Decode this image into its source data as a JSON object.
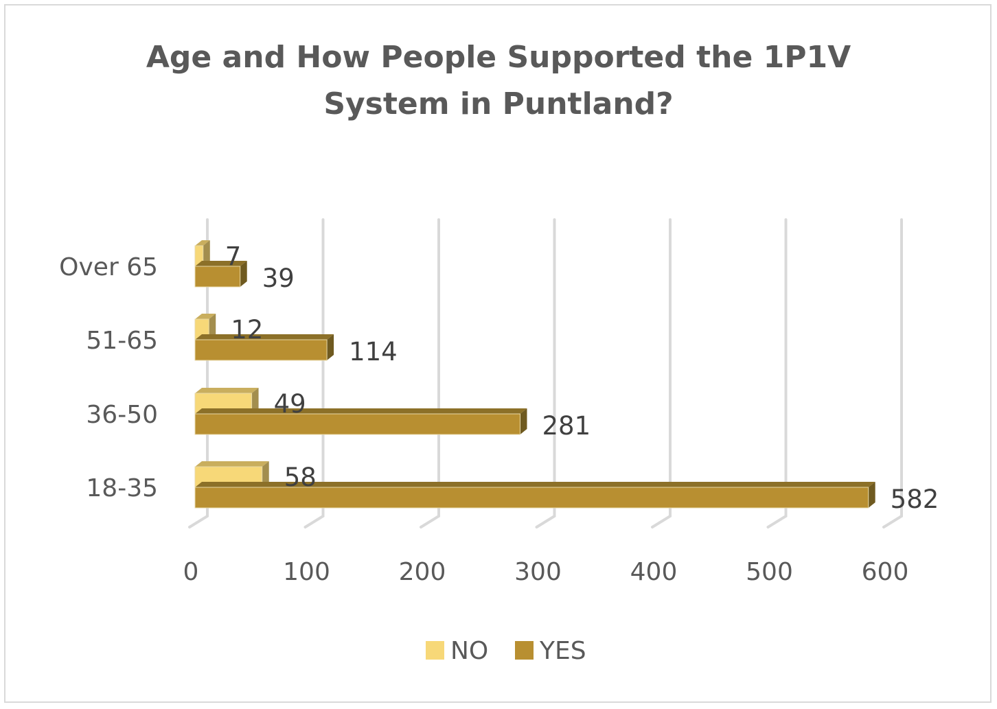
{
  "chart_data": {
    "type": "bar",
    "orientation": "horizontal",
    "style": "3d-clustered",
    "title": "Age and How People Supported the 1P1V System in Puntland?",
    "title_lines": [
      "Age and How People Supported the 1P1V",
      "System in Puntland?"
    ],
    "categories": [
      "Over 65",
      "51-65",
      "36-50",
      "18-35"
    ],
    "series": [
      {
        "name": "NO",
        "values": [
          7,
          12,
          49,
          58
        ],
        "color": "#F7D878"
      },
      {
        "name": "YES",
        "values": [
          39,
          114,
          281,
          582
        ],
        "color": "#B88F31"
      }
    ],
    "xlim": [
      0,
      600
    ],
    "xticks": [
      "0",
      "100",
      "200",
      "300",
      "400",
      "500",
      "600"
    ],
    "grid": true,
    "legend": "bottom",
    "data_labels": true
  }
}
